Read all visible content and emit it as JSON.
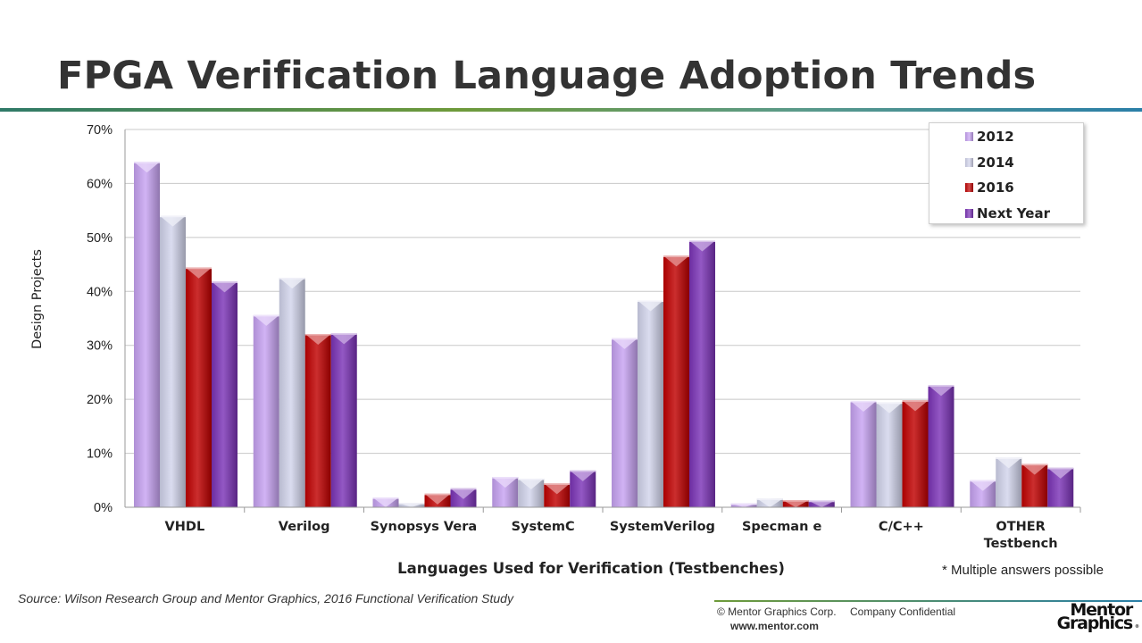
{
  "slide": {
    "title": "FPGA Verification Language Adoption Trends",
    "footnote": "* Multiple answers possible",
    "source": "Source:  Wilson Research Group and Mentor Graphics, 2016 Functional Verification Study",
    "footer": {
      "copyright": "© Mentor Graphics Corp.",
      "confidential": "Company Confidential",
      "website": "www.mentor.com",
      "logo_line1": "Mentor",
      "logo_line2": "Graphics",
      "logo_mark": "®"
    }
  },
  "chart_data": {
    "type": "bar",
    "title": "",
    "xlabel": "Languages Used for Verification (Testbenches)",
    "ylabel": "Design Projects",
    "ylim": [
      0,
      0.7
    ],
    "yticks": [
      0,
      0.1,
      0.2,
      0.3,
      0.4,
      0.5,
      0.6,
      0.7
    ],
    "ytick_labels": [
      "0%",
      "10%",
      "20%",
      "30%",
      "40%",
      "50%",
      "60%",
      "70%"
    ],
    "grid": true,
    "legend_position": "top-right",
    "categories": [
      "VHDL",
      "Verilog",
      "Synopsys Vera",
      "SystemC",
      "SystemVerilog",
      "Specman e",
      "C/C++",
      "OTHER Testbench"
    ],
    "category_lines": [
      [
        "VHDL"
      ],
      [
        "Verilog"
      ],
      [
        "Synopsys Vera"
      ],
      [
        "SystemC"
      ],
      [
        "SystemVerilog"
      ],
      [
        "Specman e"
      ],
      [
        "C/C++"
      ],
      [
        "OTHER",
        "Testbench"
      ]
    ],
    "series": [
      {
        "name": "2012",
        "color": "#c7a2f2",
        "values": [
          0.64,
          0.356,
          0.018,
          0.056,
          0.313,
          0.007,
          0.197,
          0.05
        ]
      },
      {
        "name": "2014",
        "color": "#d2d4ec",
        "values": [
          0.54,
          0.425,
          0.008,
          0.053,
          0.383,
          0.016,
          0.194,
          0.092
        ]
      },
      {
        "name": "2016",
        "color": "#c00000",
        "values": [
          0.444,
          0.321,
          0.025,
          0.044,
          0.466,
          0.013,
          0.198,
          0.08
        ]
      },
      {
        "name": "Next Year",
        "color": "#7b33b7",
        "values": [
          0.418,
          0.322,
          0.035,
          0.068,
          0.494,
          0.012,
          0.226,
          0.073
        ]
      }
    ]
  }
}
